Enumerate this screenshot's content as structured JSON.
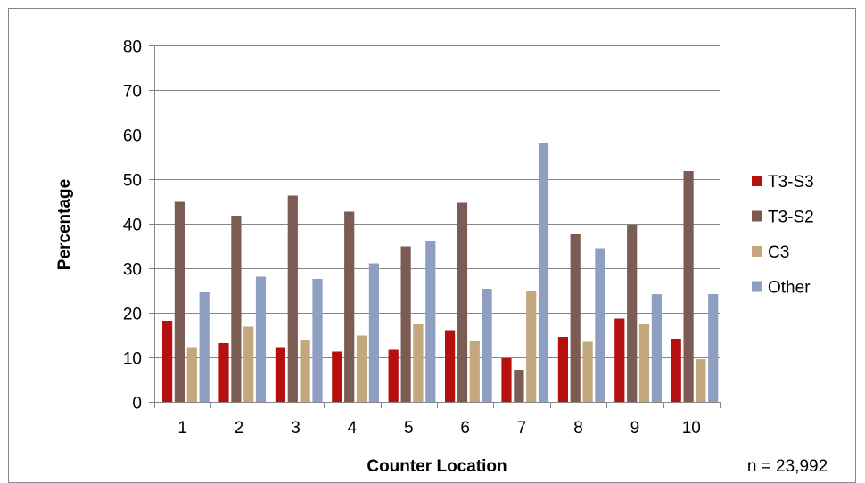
{
  "chart_data": {
    "type": "bar",
    "title": "",
    "xlabel": "Counter Location",
    "ylabel": "Percentage",
    "ylim": [
      0,
      80
    ],
    "yticks": [
      0,
      10,
      20,
      30,
      40,
      50,
      60,
      70,
      80
    ],
    "grid": true,
    "legend_position": "right",
    "categories": [
      "1",
      "2",
      "3",
      "4",
      "5",
      "6",
      "7",
      "8",
      "9",
      "10"
    ],
    "series": [
      {
        "name": "T3-S3",
        "color": "#b50f0f",
        "values": [
          18.2,
          13.2,
          12.3,
          11.3,
          11.7,
          16.1,
          9.8,
          14.6,
          18.7,
          14.2
        ]
      },
      {
        "name": "T3-S2",
        "color": "#7a5c52",
        "values": [
          44.9,
          41.8,
          46.3,
          42.7,
          34.9,
          44.7,
          7.2,
          37.6,
          39.6,
          51.8
        ]
      },
      {
        "name": "C3",
        "color": "#c3a77d",
        "values": [
          12.3,
          16.9,
          13.8,
          14.9,
          17.4,
          13.6,
          24.8,
          13.5,
          17.4,
          9.6
        ]
      },
      {
        "name": "Other",
        "color": "#8e9fc2",
        "values": [
          24.6,
          28.1,
          27.6,
          31.1,
          36.0,
          25.4,
          58.1,
          34.5,
          24.2,
          24.2
        ]
      }
    ],
    "annotation": "n = 23,992"
  }
}
